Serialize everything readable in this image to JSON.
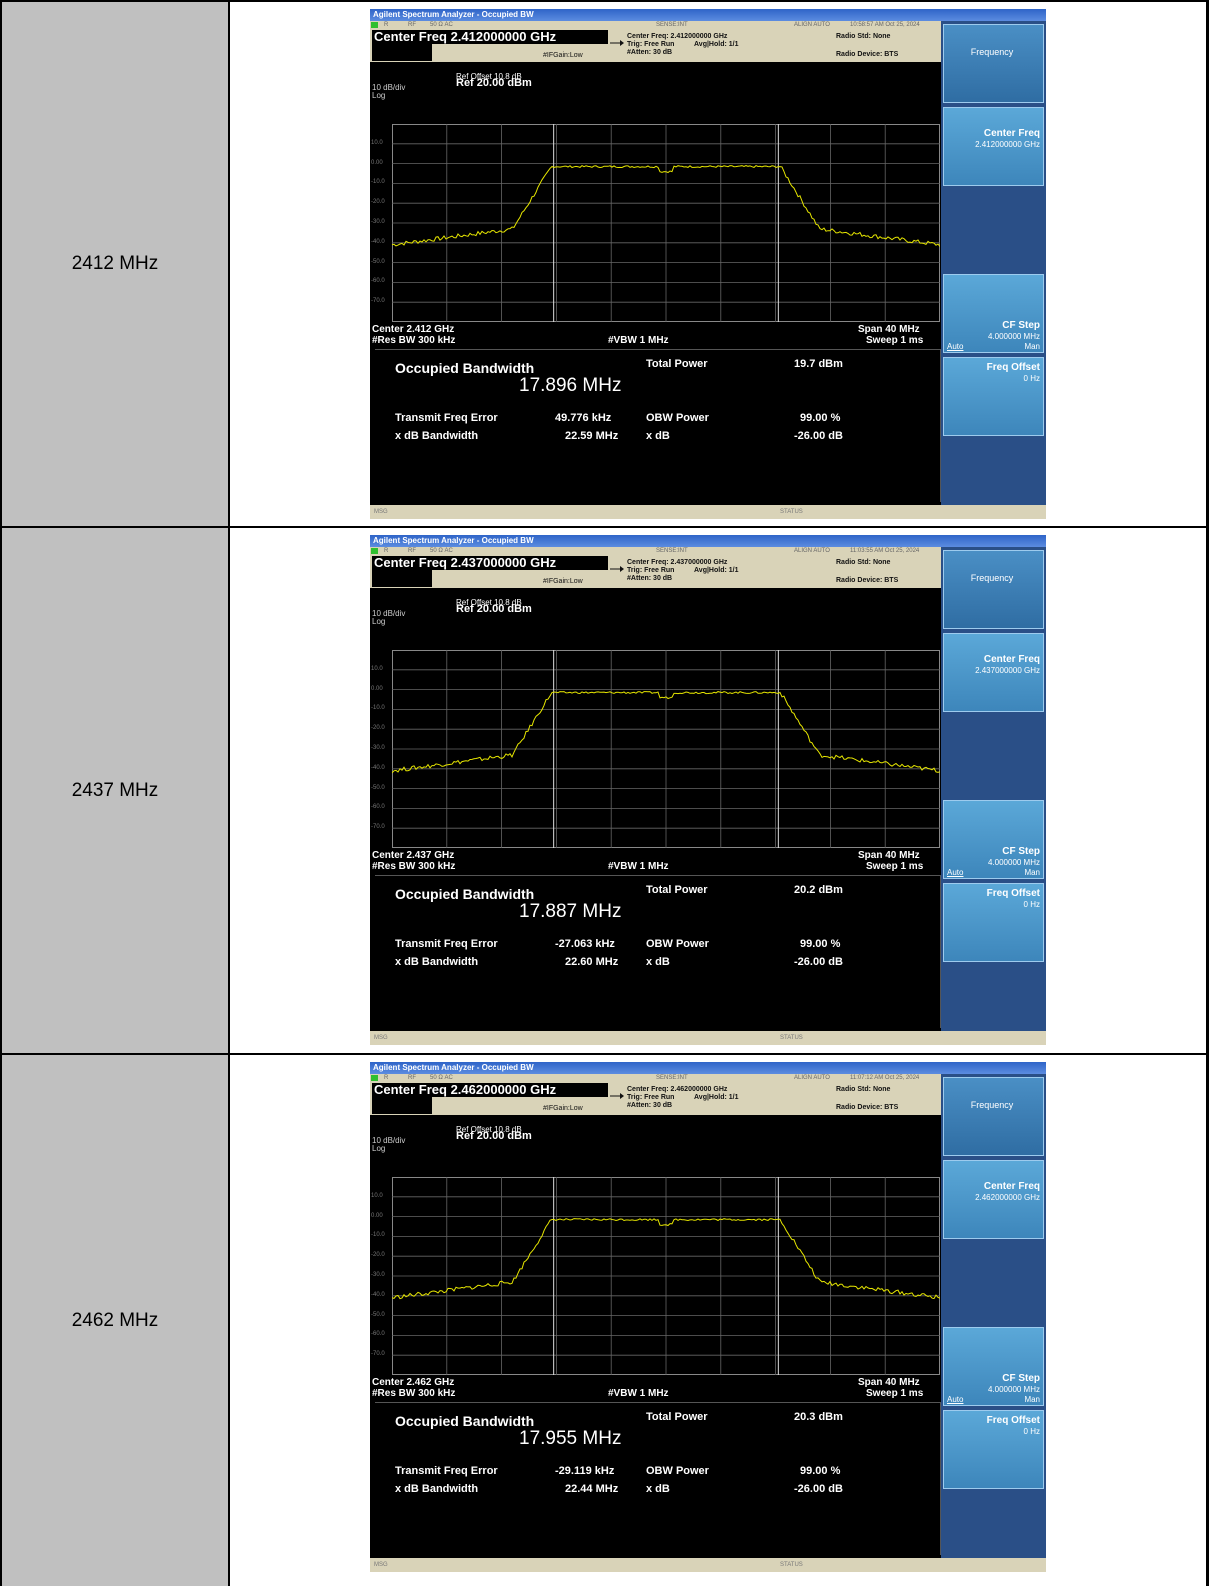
{
  "table": {
    "rows": [
      {
        "label": "2412 MHz",
        "title_bar": "Agilent Spectrum Analyzer - Occupied BW",
        "status": {
          "rlabel": "R",
          "rf": "RF",
          "ohm": "50 Ω  AC",
          "sense": "SENSE:INT",
          "align": "ALIGN AUTO",
          "time": "10:58:57 AM Oct 25, 2024"
        },
        "center_freq_title": "Center Freq 2.412000000 GHz",
        "ifgain": "#IFGain:Low",
        "info1": "Center Freq: 2.412000000 GHz",
        "info2": "Trig: Free Run",
        "info2b": "Avg|Hold: 1/1",
        "info3": "#Atten: 30 dB",
        "radio_std": "Radio Std: None",
        "radio_dev": "Radio Device: BTS",
        "ref_offset": "Ref Offset 10.8 dB",
        "ref_level": "Ref 20.00 dBm",
        "scale": "10 dB/div",
        "log": "Log",
        "y_ticks": [
          "10.0",
          "0.00",
          "-10.0",
          "-20.0",
          "-30.0",
          "-40.0",
          "-50.0",
          "-60.0",
          "-70.0"
        ],
        "center": "Center  2.412 GHz",
        "res_bw": "#Res BW  300 kHz",
        "vbw": "#VBW  1 MHz",
        "span": "Span 40 MHz",
        "sweep": "Sweep  1 ms",
        "occupied_bandwidth_label": "Occupied Bandwidth",
        "occupied_bandwidth_value": "17.896 MHz",
        "total_power_label": "Total Power",
        "total_power_value": "19.7 dBm",
        "tfe_label": "Transmit Freq Error",
        "tfe_value": "49.776 kHz",
        "obw_power_label": "OBW Power",
        "obw_power_value": "99.00 %",
        "xdb_bw_label": "x dB Bandwidth",
        "xdb_bw_value": "22.59 MHz",
        "xdb_label": "x dB",
        "xdb_value": "-26.00 dB",
        "msg": "MSG",
        "status_label": "STATUS",
        "softkeys": {
          "frequency": "Frequency",
          "center_freq": "Center Freq",
          "center_freq_value": "2.412000000 GHz",
          "cf_step": "CF Step",
          "cf_step_value": "4.000000 MHz",
          "auto": "Auto",
          "man": "Man",
          "freq_offset": "Freq Offset",
          "freq_offset_value": "0 Hz"
        }
      },
      {
        "label": "2437 MHz",
        "title_bar": "Agilent Spectrum Analyzer - Occupied BW",
        "status": {
          "rlabel": "R",
          "rf": "RF",
          "ohm": "50 Ω  AC",
          "sense": "SENSE:INT",
          "align": "ALIGN AUTO",
          "time": "11:03:55 AM Oct 25, 2024"
        },
        "center_freq_title": "Center Freq 2.437000000 GHz",
        "ifgain": "#IFGain:Low",
        "info1": "Center Freq: 2.437000000 GHz",
        "info2": "Trig: Free Run",
        "info2b": "Avg|Hold: 1/1",
        "info3": "#Atten: 30 dB",
        "radio_std": "Radio Std: None",
        "radio_dev": "Radio Device: BTS",
        "ref_offset": "Ref Offset 10.8 dB",
        "ref_level": "Ref 20.00 dBm",
        "scale": "10 dB/div",
        "log": "Log",
        "y_ticks": [
          "10.0",
          "0.00",
          "-10.0",
          "-20.0",
          "-30.0",
          "-40.0",
          "-50.0",
          "-60.0",
          "-70.0"
        ],
        "center": "Center  2.437 GHz",
        "res_bw": "#Res BW  300 kHz",
        "vbw": "#VBW  1 MHz",
        "span": "Span 40 MHz",
        "sweep": "Sweep  1 ms",
        "occupied_bandwidth_label": "Occupied Bandwidth",
        "occupied_bandwidth_value": "17.887 MHz",
        "total_power_label": "Total Power",
        "total_power_value": "20.2 dBm",
        "tfe_label": "Transmit Freq Error",
        "tfe_value": "-27.063 kHz",
        "obw_power_label": "OBW Power",
        "obw_power_value": "99.00 %",
        "xdb_bw_label": "x dB Bandwidth",
        "xdb_bw_value": "22.60 MHz",
        "xdb_label": "x dB",
        "xdb_value": "-26.00 dB",
        "msg": "MSG",
        "status_label": "STATUS",
        "softkeys": {
          "frequency": "Frequency",
          "center_freq": "Center Freq",
          "center_freq_value": "2.437000000 GHz",
          "cf_step": "CF Step",
          "cf_step_value": "4.000000 MHz",
          "auto": "Auto",
          "man": "Man",
          "freq_offset": "Freq Offset",
          "freq_offset_value": "0 Hz"
        }
      },
      {
        "label": "2462 MHz",
        "title_bar": "Agilent Spectrum Analyzer - Occupied BW",
        "status": {
          "rlabel": "R",
          "rf": "RF",
          "ohm": "50 Ω  AC",
          "sense": "SENSE:INT",
          "align": "ALIGN AUTO",
          "time": "11:07:12 AM Oct 25, 2024"
        },
        "center_freq_title": "Center Freq 2.462000000 GHz",
        "ifgain": "#IFGain:Low",
        "info1": "Center Freq: 2.462000000 GHz",
        "info2": "Trig: Free Run",
        "info2b": "Avg|Hold: 1/1",
        "info3": "#Atten: 30 dB",
        "radio_std": "Radio Std: None",
        "radio_dev": "Radio Device: BTS",
        "ref_offset": "Ref Offset 10.8 dB",
        "ref_level": "Ref 20.00 dBm",
        "scale": "10 dB/div",
        "log": "Log",
        "y_ticks": [
          "10.0",
          "0.00",
          "-10.0",
          "-20.0",
          "-30.0",
          "-40.0",
          "-50.0",
          "-60.0",
          "-70.0"
        ],
        "center": "Center  2.462 GHz",
        "res_bw": "#Res BW  300 kHz",
        "vbw": "#VBW  1 MHz",
        "span": "Span 40 MHz",
        "sweep": "Sweep  1 ms",
        "occupied_bandwidth_label": "Occupied Bandwidth",
        "occupied_bandwidth_value": "17.955 MHz",
        "total_power_label": "Total Power",
        "total_power_value": "20.3 dBm",
        "tfe_label": "Transmit Freq Error",
        "tfe_value": "-29.119 kHz",
        "obw_power_label": "OBW Power",
        "obw_power_value": "99.00 %",
        "xdb_bw_label": "x dB Bandwidth",
        "xdb_bw_value": "22.44 MHz",
        "xdb_label": "x dB",
        "xdb_value": "-26.00 dB",
        "msg": "MSG",
        "status_label": "STATUS",
        "softkeys": {
          "frequency": "Frequency",
          "center_freq": "Center Freq",
          "center_freq_value": "2.462000000 GHz",
          "cf_step": "CF Step",
          "cf_step_value": "4.000000 MHz",
          "auto": "Auto",
          "man": "Man",
          "freq_offset": "Freq Offset",
          "freq_offset_value": "0 Hz"
        }
      }
    ]
  },
  "colors": {
    "trace": "#e6e600",
    "softkey": "#3d86bb",
    "label_cell": "#c0c0c0"
  }
}
